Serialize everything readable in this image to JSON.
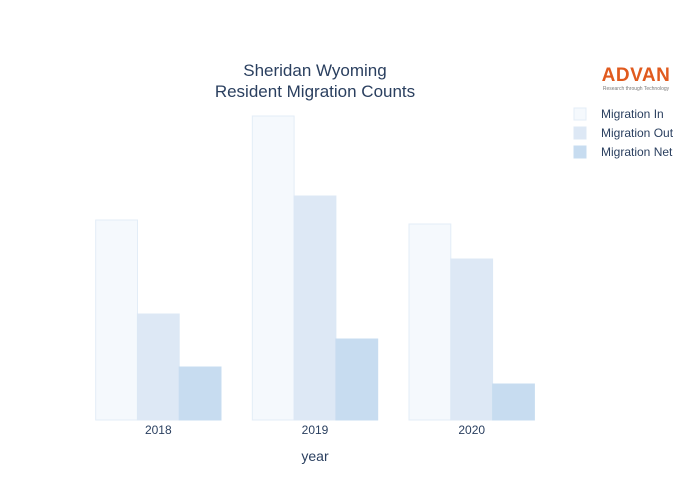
{
  "logo": {
    "name": "ADVAN",
    "tagline": "Research through Technology"
  },
  "chart_data": {
    "type": "bar",
    "title": [
      "Sheridan Wyoming",
      "Resident Migration Counts"
    ],
    "xlabel": "year",
    "ylabel": "",
    "categories": [
      "2018",
      "2019",
      "2020"
    ],
    "series": [
      {
        "name": "Migration In",
        "color": "#f5f9fd",
        "stroke": "#e3edf7",
        "values": [
          1000,
          1520,
          980
        ]
      },
      {
        "name": "Migration Out",
        "color": "#dde8f5",
        "stroke": "#dde8f5",
        "values": [
          530,
          1120,
          805
        ]
      },
      {
        "name": "Migration Net",
        "color": "#c7dcf0",
        "stroke": "#c7dcf0",
        "values": [
          265,
          405,
          180
        ]
      }
    ],
    "ylim": [
      0,
      1600
    ],
    "grid": false,
    "legend_position": "top-right"
  }
}
